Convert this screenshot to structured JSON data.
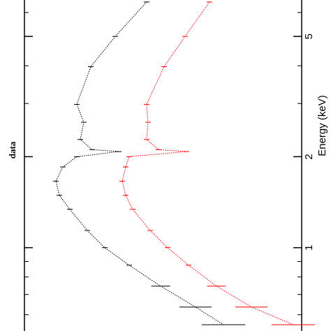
{
  "chart_data": {
    "type": "line",
    "title": "data",
    "x_label": "Energy (keV)",
    "xscale": "log",
    "xlim": [
      0.53,
      6.6
    ],
    "xticks": [
      1,
      2,
      5
    ],
    "xminor": [
      0.6,
      0.7,
      0.8,
      0.9,
      3,
      4,
      6
    ],
    "ylim": [
      0,
      397
    ],
    "x": [
      6.5,
      5,
      3.97,
      2.98,
      2.6,
      2.28,
      2.11,
      2.08,
      2.0,
      1.85,
      1.66,
      1.49,
      1.34,
      1.14,
      1.0,
      0.875,
      0.746,
      0.636,
      0.556
    ],
    "series": [
      {
        "color": "#000000",
        "values": [
          222,
          267,
          302,
          322,
          312,
          317,
          300,
          262,
          322,
          342,
          352,
          347,
          332,
          307,
          282,
          247,
          202,
          152,
          112
        ]
      },
      {
        "color": "#ff0000",
        "values": [
          132,
          167,
          197,
          222,
          220,
          222,
          205,
          165,
          247,
          252,
          257,
          252,
          242,
          217,
          192,
          162,
          122,
          72,
          12
        ]
      }
    ]
  }
}
